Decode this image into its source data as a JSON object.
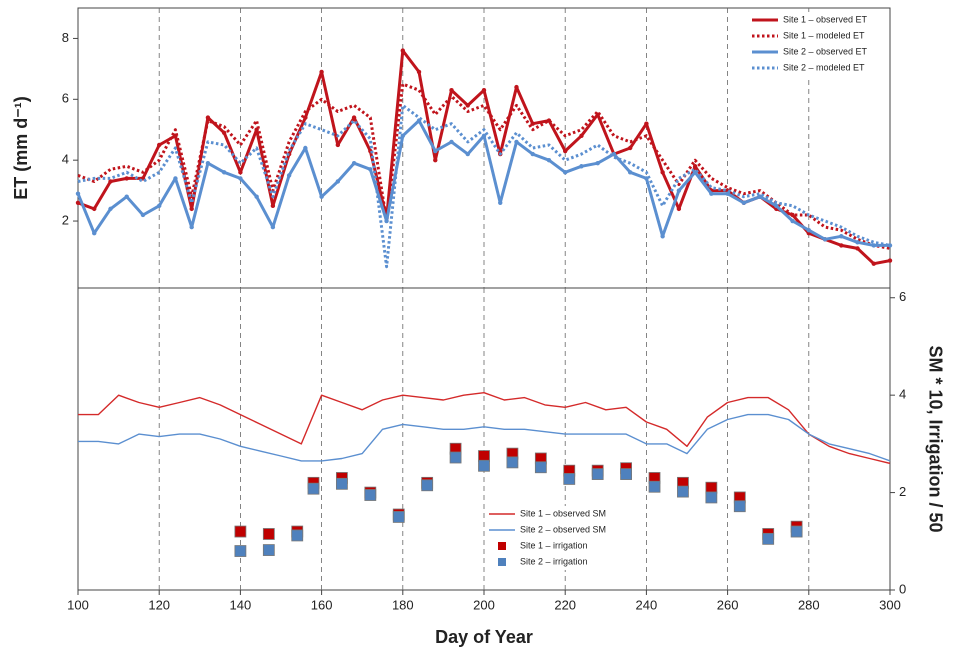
{
  "chart_data": [
    {
      "type": "line",
      "ylabel": "ET (mm d⁻¹)",
      "xlim": [
        100,
        300
      ],
      "ylim": [
        -0.2,
        9
      ],
      "yticks": [
        2,
        4,
        6,
        8
      ],
      "grid_x": true,
      "legend": "upper right",
      "x": [
        100,
        104,
        108,
        112,
        116,
        120,
        124,
        128,
        132,
        136,
        140,
        144,
        148,
        152,
        156,
        160,
        164,
        168,
        172,
        176,
        180,
        184,
        188,
        192,
        196,
        200,
        204,
        208,
        212,
        216,
        220,
        224,
        228,
        232,
        236,
        240,
        244,
        248,
        252,
        256,
        260,
        264,
        268,
        272,
        276,
        280,
        284,
        288,
        292,
        296,
        300
      ],
      "series": [
        {
          "name": "Site 1 – observed ET",
          "color": "#c0141c",
          "style": "solid",
          "markers": true,
          "values": [
            2.6,
            2.4,
            3.3,
            3.4,
            3.4,
            4.5,
            4.8,
            2.4,
            5.4,
            4.9,
            3.6,
            5.0,
            2.5,
            4.2,
            5.4,
            6.9,
            4.5,
            5.4,
            4.3,
            2.1,
            7.6,
            6.9,
            4.0,
            6.3,
            5.8,
            6.3,
            4.2,
            6.4,
            5.2,
            5.3,
            4.3,
            4.8,
            5.5,
            4.2,
            4.4,
            5.2,
            3.6,
            2.4,
            3.8,
            3.0,
            3.0,
            2.6,
            2.8,
            2.4,
            2.2,
            1.6,
            1.4,
            1.2,
            1.1,
            0.6,
            0.7
          ]
        },
        {
          "name": "Site 1 – modeled ET",
          "color": "#c0141c",
          "style": "dotted",
          "values": [
            3.5,
            3.3,
            3.7,
            3.8,
            3.6,
            4.0,
            5.0,
            2.8,
            5.3,
            5.1,
            4.5,
            5.3,
            3.0,
            4.6,
            5.6,
            6.0,
            5.6,
            5.8,
            5.4,
            2.0,
            6.5,
            6.3,
            5.5,
            6.1,
            5.6,
            5.8,
            5.0,
            5.8,
            5.0,
            5.3,
            4.8,
            5.0,
            5.6,
            4.8,
            4.6,
            4.8,
            4.0,
            3.2,
            4.0,
            3.4,
            3.1,
            2.9,
            3.0,
            2.6,
            2.2,
            2.2,
            1.8,
            1.7,
            1.4,
            1.2,
            1.1
          ]
        },
        {
          "name": "Site 2 – observed ET",
          "color": "#5b8fd0",
          "style": "solid",
          "markers": true,
          "values": [
            2.9,
            1.6,
            2.4,
            2.8,
            2.2,
            2.5,
            3.4,
            1.8,
            3.9,
            3.6,
            3.4,
            2.8,
            1.8,
            3.5,
            4.4,
            2.8,
            3.3,
            3.9,
            3.7,
            2.0,
            4.8,
            5.3,
            4.3,
            4.6,
            4.2,
            4.8,
            2.6,
            4.6,
            4.2,
            4.0,
            3.6,
            3.8,
            3.9,
            4.2,
            3.6,
            3.4,
            1.5,
            3.0,
            3.6,
            2.9,
            2.9,
            2.6,
            2.8,
            2.5,
            2.0,
            1.7,
            1.4,
            1.5,
            1.3,
            1.2,
            1.2
          ]
        },
        {
          "name": "Site 2 – modeled ET",
          "color": "#5b8fd0",
          "style": "dotted",
          "values": [
            3.3,
            3.4,
            3.4,
            3.6,
            3.3,
            3.6,
            4.4,
            2.6,
            4.6,
            4.5,
            3.9,
            4.4,
            2.8,
            4.3,
            5.2,
            5.0,
            4.8,
            5.3,
            4.7,
            0.5,
            5.8,
            5.4,
            5.0,
            5.2,
            4.6,
            5.0,
            4.2,
            4.9,
            4.4,
            4.5,
            4.0,
            4.2,
            4.5,
            4.1,
            3.9,
            3.6,
            2.5,
            3.4,
            3.7,
            3.1,
            3.0,
            2.8,
            2.9,
            2.6,
            2.5,
            2.2,
            2.0,
            1.8,
            1.5,
            1.3,
            1.2
          ]
        }
      ]
    },
    {
      "type": "line",
      "xlabel": "Day of Year",
      "y2label": "SM * 10, Irrigation / 50",
      "xlim": [
        100,
        300
      ],
      "xticks": [
        100,
        120,
        140,
        160,
        180,
        200,
        220,
        240,
        260,
        280,
        300
      ],
      "y2lim": [
        0,
        6.2
      ],
      "y2ticks": [
        0,
        2,
        4,
        6
      ],
      "grid_x": true,
      "legend": "lower center",
      "series": [
        {
          "name": "Site 1 – observed SM",
          "color": "#d42a2a",
          "mode": "line",
          "axis": "y2",
          "x": [
            100,
            105,
            110,
            115,
            120,
            125,
            130,
            135,
            140,
            145,
            150,
            155,
            160,
            165,
            170,
            175,
            180,
            185,
            190,
            195,
            200,
            205,
            210,
            215,
            220,
            225,
            230,
            235,
            240,
            245,
            250,
            255,
            260,
            265,
            270,
            275,
            280,
            285,
            290,
            295,
            300
          ],
          "values": [
            3.6,
            3.6,
            4.0,
            3.85,
            3.75,
            3.85,
            3.95,
            3.8,
            3.6,
            3.4,
            3.2,
            3.0,
            4.0,
            3.85,
            3.7,
            3.9,
            4.0,
            3.95,
            3.9,
            4.0,
            4.05,
            3.9,
            3.95,
            3.8,
            3.75,
            3.85,
            3.7,
            3.75,
            3.45,
            3.3,
            2.95,
            3.55,
            3.85,
            3.95,
            3.95,
            3.7,
            3.2,
            2.95,
            2.8,
            2.7,
            2.6
          ]
        },
        {
          "name": "Site 2 – observed SM",
          "color": "#5b8fd0",
          "mode": "line",
          "axis": "y2",
          "x": [
            100,
            105,
            110,
            115,
            120,
            125,
            130,
            135,
            140,
            145,
            150,
            155,
            160,
            165,
            170,
            175,
            180,
            185,
            190,
            195,
            200,
            205,
            210,
            215,
            220,
            225,
            230,
            235,
            240,
            245,
            250,
            255,
            260,
            265,
            270,
            275,
            280,
            285,
            290,
            295,
            300
          ],
          "values": [
            3.05,
            3.05,
            3.0,
            3.2,
            3.15,
            3.2,
            3.2,
            3.1,
            2.95,
            2.85,
            2.75,
            2.65,
            2.65,
            2.7,
            2.8,
            3.3,
            3.4,
            3.35,
            3.3,
            3.3,
            3.35,
            3.3,
            3.3,
            3.25,
            3.2,
            3.2,
            3.2,
            3.2,
            3.0,
            3.0,
            2.8,
            3.3,
            3.5,
            3.6,
            3.6,
            3.5,
            3.2,
            3.0,
            2.9,
            2.8,
            2.65
          ]
        },
        {
          "name": "Site 1 – irrigation",
          "color": "#c00000",
          "mode": "square",
          "axis": "y2",
          "x": [
            140,
            147,
            154,
            158,
            165,
            172,
            179,
            186,
            193,
            200,
            207,
            214,
            221,
            228,
            235,
            242,
            249,
            256,
            263,
            270,
            277
          ],
          "values": [
            1.2,
            1.15,
            1.2,
            2.2,
            2.3,
            2.0,
            1.55,
            2.2,
            2.9,
            2.75,
            2.8,
            2.7,
            2.45,
            2.45,
            2.5,
            2.3,
            2.2,
            2.1,
            1.9,
            1.15,
            1.3
          ]
        },
        {
          "name": "Site 2 – irrigation",
          "color": "#4f81bd",
          "mode": "square",
          "axis": "y2",
          "x": [
            140,
            147,
            154,
            158,
            165,
            172,
            179,
            186,
            193,
            200,
            207,
            214,
            221,
            228,
            235,
            242,
            249,
            256,
            263,
            270,
            277
          ],
          "values": [
            0.8,
            0.82,
            1.12,
            2.08,
            2.18,
            1.95,
            1.5,
            2.15,
            2.72,
            2.55,
            2.62,
            2.52,
            2.28,
            2.38,
            2.38,
            2.12,
            2.02,
            1.9,
            1.72,
            1.05,
            1.2
          ]
        }
      ]
    }
  ]
}
